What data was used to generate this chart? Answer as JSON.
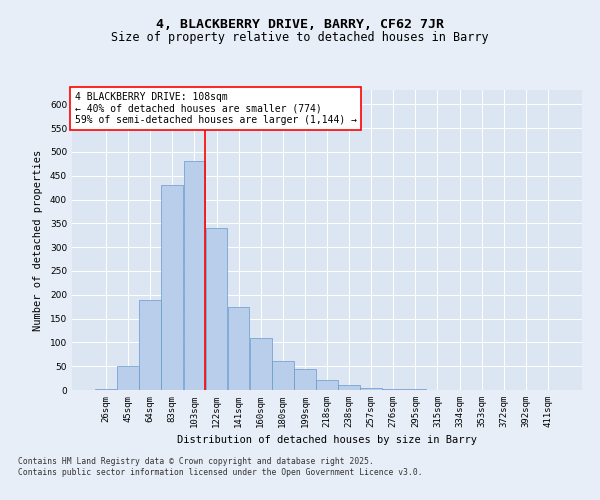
{
  "title1": "4, BLACKBERRY DRIVE, BARRY, CF62 7JR",
  "title2": "Size of property relative to detached houses in Barry",
  "xlabel": "Distribution of detached houses by size in Barry",
  "ylabel": "Number of detached properties",
  "categories": [
    "26sqm",
    "45sqm",
    "64sqm",
    "83sqm",
    "103sqm",
    "122sqm",
    "141sqm",
    "160sqm",
    "180sqm",
    "199sqm",
    "218sqm",
    "238sqm",
    "257sqm",
    "276sqm",
    "295sqm",
    "315sqm",
    "334sqm",
    "353sqm",
    "372sqm",
    "392sqm",
    "411sqm"
  ],
  "bar_values": [
    2,
    50,
    190,
    430,
    480,
    340,
    175,
    110,
    60,
    45,
    20,
    10,
    5,
    3,
    2,
    1,
    1,
    1,
    1,
    1,
    1
  ],
  "bar_color": "#b8ceea",
  "bar_edge_color": "#6699cc",
  "red_line_x": 4.5,
  "annotation_text": "4 BLACKBERRY DRIVE: 108sqm\n← 40% of detached houses are smaller (774)\n59% of semi-detached houses are larger (1,144) →",
  "ylim": [
    0,
    630
  ],
  "yticks": [
    0,
    50,
    100,
    150,
    200,
    250,
    300,
    350,
    400,
    450,
    500,
    550,
    600
  ],
  "background_color": "#e8eef7",
  "plot_background_color": "#dce6f2",
  "footer_text": "Contains HM Land Registry data © Crown copyright and database right 2025.\nContains public sector information licensed under the Open Government Licence v3.0.",
  "title1_fontsize": 9.5,
  "title2_fontsize": 8.5,
  "label_fontsize": 7.5,
  "tick_fontsize": 6.5,
  "annotation_fontsize": 7,
  "footer_fontsize": 5.8
}
